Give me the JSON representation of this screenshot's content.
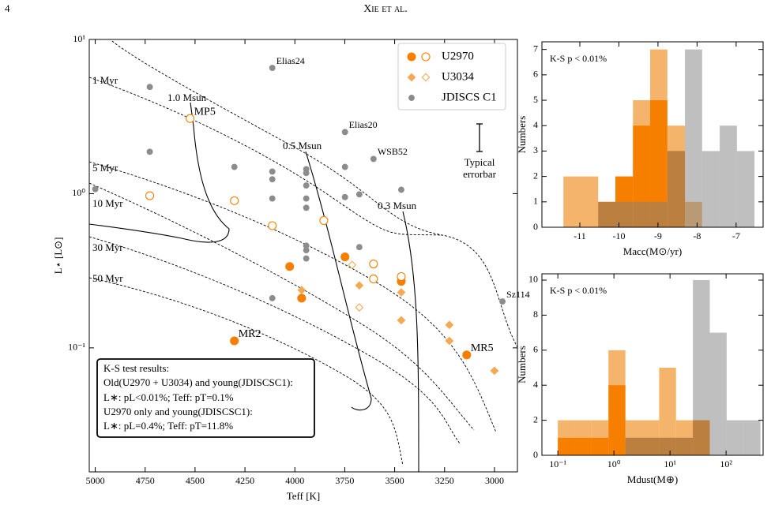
{
  "header": {
    "page": "4",
    "running_title": "Xie et al."
  },
  "chart_data": [
    {
      "type": "scatter",
      "xlabel": "Teff [K]",
      "ylabel": "L⋆ [L⊙]",
      "xlim": [
        5030,
        2885
      ],
      "ylim": [
        0.0157,
        10
      ],
      "ylog": true,
      "xticks": [
        5000,
        4750,
        4500,
        4250,
        4000,
        3750,
        3500,
        3250,
        3000
      ],
      "yticks": [
        {
          "value": 0.1,
          "label": "10⁻¹"
        },
        {
          "value": 1,
          "label": "10⁰"
        },
        {
          "value": 10,
          "label": "10¹"
        }
      ],
      "legend": "upper right",
      "series": [
        {
          "name": "U2970",
          "color": "#f77f00",
          "marker": "o",
          "x": [
            4303,
            4026,
            3966,
            3749,
            3467,
            3139,
            4525,
            4727,
            4303,
            4113,
            3855,
            3606,
            3606,
            3467
          ],
          "y": [
            0.111,
            0.337,
            0.21,
            0.389,
            0.27,
            0.09,
            3.07,
            0.97,
            0.9,
            0.62,
            0.67,
            0.35,
            0.28,
            0.29
          ],
          "filled": [
            true,
            true,
            true,
            true,
            true,
            true,
            false,
            false,
            false,
            false,
            false,
            false,
            false,
            false
          ],
          "labels": [
            "MR2",
            null,
            null,
            null,
            null,
            "MR5",
            "MP5",
            null,
            null,
            null,
            null,
            null,
            null,
            null
          ]
        },
        {
          "name": "U3034",
          "color": "#f5a955",
          "marker": "D",
          "x": [
            3966,
            3677,
            3467,
            3467,
            3226,
            3226,
            3000,
            3713,
            3677
          ],
          "y": [
            0.237,
            0.254,
            0.229,
            0.151,
            0.141,
            0.111,
            0.071,
            0.345,
            0.183
          ],
          "filled": [
            true,
            true,
            true,
            true,
            true,
            true,
            true,
            false,
            false
          ]
        },
        {
          "name": "JDISCS C1",
          "color": "#8c8c8c",
          "marker": ".",
          "x": [
            5000,
            4727,
            4727,
            4113,
            4303,
            4113,
            4113,
            4113,
            4113,
            3943,
            3943,
            3943,
            3943,
            3943,
            3943,
            3943,
            3943,
            3749,
            3749,
            3749,
            3677,
            3677,
            3606,
            3467,
            2960
          ],
          "y": [
            1.07,
            4.92,
            1.87,
            6.54,
            1.49,
            1.39,
            1.24,
            0.93,
            0.21,
            1.44,
            1.36,
            1.13,
            0.93,
            0.81,
            0.46,
            0.43,
            0.38,
            2.51,
            1.49,
            0.95,
            0.99,
            0.45,
            1.68,
            1.06,
            0.2
          ],
          "labels": [
            null,
            null,
            null,
            "Elias24",
            null,
            null,
            null,
            null,
            null,
            null,
            null,
            null,
            null,
            null,
            null,
            null,
            null,
            "Elias20",
            null,
            null,
            null,
            null,
            "WSB52",
            null,
            "Sz114"
          ]
        }
      ],
      "isochrone_labels": [
        "1 Myr",
        "5 Myr",
        "10 Myr",
        "30 Myr",
        "50 Myr"
      ],
      "track_labels": [
        "1.0 Msun",
        "0.5 Msun",
        "0.3 Msun"
      ],
      "errorbar_label": [
        "Typical",
        "errorbar"
      ],
      "ks_box": [
        "K-S test results:",
        "Old(U2970 + U3034) and young(JDISCSC1):",
        "L∗: pL<0.01%; Teff: pT=0.1%",
        "U2970 only and young(JDISCSC1):",
        "L∗: pL=0.4%; Teff: pT=11.8%"
      ]
    },
    {
      "type": "histogram",
      "xlabel": "Macc(M⊙/yr)",
      "ylabel": "Numbers",
      "annotation": "K-S p < 0.01%",
      "xlim": [
        -11.97,
        -6.31
      ],
      "ylim": [
        0,
        7.3
      ],
      "xticks": [
        -11,
        -10,
        -9,
        -8,
        -7
      ],
      "yticks": [
        0,
        1,
        2,
        3,
        4,
        5,
        6,
        7
      ],
      "bins": [
        -11.42,
        -10.98,
        -10.53,
        -10.09,
        -9.64,
        -9.2,
        -8.76,
        -8.31,
        -7.87,
        -7.42,
        -6.98,
        -6.53
      ],
      "series": [
        {
          "color": "#f5b46b",
          "values": [
            2,
            2,
            1,
            2,
            5,
            7,
            4,
            1,
            0,
            0,
            0
          ]
        },
        {
          "color": "#f77f00",
          "values": [
            0,
            0,
            1,
            2,
            4,
            5,
            3,
            0,
            0,
            0,
            0
          ]
        },
        {
          "color": "#808080",
          "alpha": 0.5,
          "values": [
            0,
            0,
            1,
            1,
            1,
            1,
            3,
            7,
            3,
            4,
            3
          ]
        }
      ]
    },
    {
      "type": "histogram",
      "xlabel": "Mdust(M⊕)",
      "ylabel": "Numbers",
      "annotation": "K-S p < 0.01%",
      "xlim": [
        0.052,
        457
      ],
      "ylim": [
        0,
        10.36
      ],
      "xlog": true,
      "xticks": [
        {
          "value": 0.1,
          "label": "10⁻¹"
        },
        {
          "value": 1,
          "label": "10⁰"
        },
        {
          "value": 10,
          "label": "10¹"
        },
        {
          "value": 100,
          "label": "10²"
        }
      ],
      "yticks": [
        0,
        2,
        4,
        6,
        8,
        10
      ],
      "bins": [
        0.1,
        0.2,
        0.4,
        0.8,
        1.6,
        3.2,
        6.4,
        12.8,
        25.6,
        51.2,
        102.4,
        204.8,
        409.6
      ],
      "series": [
        {
          "color": "#f5b46b",
          "values": [
            2,
            2,
            2,
            6,
            2,
            2,
            5,
            2,
            2,
            0,
            0,
            0
          ]
        },
        {
          "color": "#f77f00",
          "values": [
            1,
            1,
            1,
            4,
            1,
            1,
            1,
            1,
            2,
            0,
            0,
            0
          ]
        },
        {
          "color": "#808080",
          "alpha": 0.5,
          "values": [
            0,
            0,
            0,
            0,
            1,
            1,
            1,
            1,
            10,
            7,
            2,
            2
          ]
        }
      ]
    }
  ]
}
